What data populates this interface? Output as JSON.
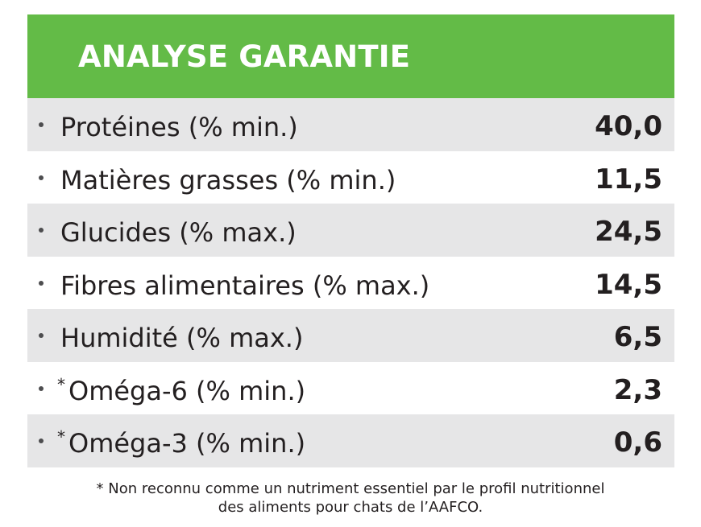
{
  "header": {
    "title": "ANALYSE GARANTIE"
  },
  "rows": [
    {
      "asterisk": "",
      "label": "Protéines (% min.)",
      "value": "40,0"
    },
    {
      "asterisk": "",
      "label": "Matières grasses (% min.)",
      "value": "11,5"
    },
    {
      "asterisk": "",
      "label": "Glucides (% max.)",
      "value": "24,5"
    },
    {
      "asterisk": "",
      "label": "Fibres alimentaires (% max.)",
      "value": "14,5"
    },
    {
      "asterisk": "",
      "label": "Humidité (% max.)",
      "value": "6,5"
    },
    {
      "asterisk": "*",
      "label": "Oméga-6 (% min.)",
      "value": "2,3"
    },
    {
      "asterisk": "*",
      "label": "Oméga-3 (% min.)",
      "value": "0,6"
    }
  ],
  "footnote": {
    "line1": "* Non reconnu comme un nutriment essentiel par le profil nutritionnel",
    "line2": "des aliments pour chats de l’AAFCO."
  },
  "colors": {
    "header_green": "#63bb47",
    "row_shade": "#e6e6e7",
    "text": "#231f20"
  }
}
